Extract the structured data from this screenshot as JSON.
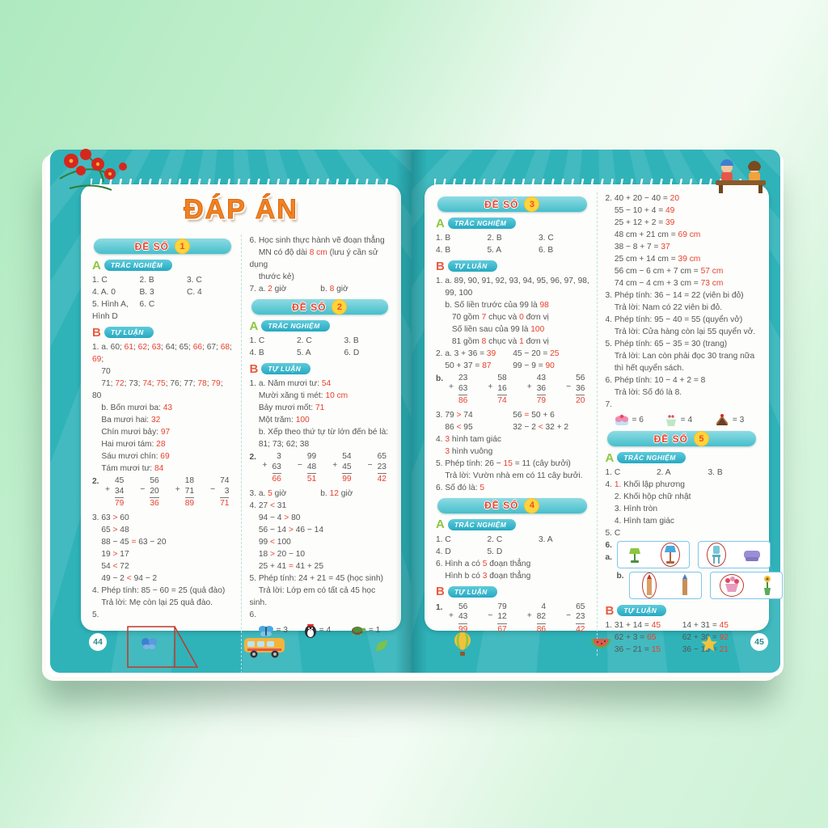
{
  "title": "ĐÁP ÁN",
  "labels": {
    "a": "A",
    "b": "B",
    "tn": "TRẮC NGHIỆM",
    "tl": "TỰ LUẬN",
    "de": "ĐỀ SỐ"
  },
  "footer": {
    "page_left": "44",
    "page_right": "45"
  },
  "de1": {
    "num": "1",
    "tn_rows": [
      [
        "1. C",
        "2. B",
        "3. C"
      ],
      [
        "4. A. 0",
        "B. 3",
        "C. 4"
      ],
      [
        "5. Hình A, Hình D",
        "6. C",
        ""
      ]
    ],
    "tl1": [
      "1. a. 60; [61]; [62]; [63]; 64; 65; [66]; 67; [68]; [69];",
      "    70",
      "    71; [72]; 73; [74]; [75]; 76; 77; [78]; [79]; 80",
      "    b. Bốn mươi ba: [43]",
      "    Ba mươi hai: [32]",
      "    Chín mươi bảy: [97]",
      "    Hai mươi tám: [28]",
      "    Sáu mươi chín: [69]",
      "    Tám mươi tư: [84]"
    ],
    "s2_label": "2.",
    "s2": [
      {
        "op": "+",
        "a": "45",
        "b": "34",
        "r": "79"
      },
      {
        "op": "−",
        "a": "56",
        "b": "20",
        "r": "36"
      },
      {
        "op": "+",
        "a": "18",
        "b": "71",
        "r": "89"
      },
      {
        "op": "−",
        "a": "74",
        "b": "3",
        "r": "71"
      }
    ],
    "s3": [
      "3. 63 [>] 60",
      "    65 [>] 48",
      "    88 − 45 [=] 63 − 20",
      "    19 [>] 17",
      "    54 [<] 72",
      "    49 − 2 [<] 94 − 2",
      "4. Phép tính: 85 − 60 = 25 (quả đào)",
      "    Trả lời: Mẹ còn lại 25 quả đào.",
      "5."
    ],
    "s6": [
      "6. Học sinh thực hành vẽ đoạn thẳng",
      "    MN có độ dài [8 cm] (lưu ý cần sử dụng",
      "    thước kẻ)",
      [
        "7. a. [2] giờ",
        "b. [8] giờ"
      ]
    ]
  },
  "de2": {
    "num": "2",
    "tn_rows": [
      [
        "1. C",
        "2. C",
        "3. B"
      ],
      [
        "4. B",
        "5. A",
        "6. D"
      ]
    ],
    "tl1": [
      "1. a. Năm mươi tư: [54]",
      "    Mười xăng ti mét: [10 cm]",
      "    Bảy mươi mốt: [71]",
      "    Một trăm: [100]",
      "    b. Xếp theo thứ tự từ lớn đến bé là:",
      "    81; 73; 62; 38"
    ],
    "s2_label": "2.",
    "s2": [
      {
        "op": "+",
        "a": "3",
        "b": "63",
        "r": "66"
      },
      {
        "op": "−",
        "a": "99",
        "b": "48",
        "r": "51"
      },
      {
        "op": "+",
        "a": "54",
        "b": "45",
        "r": "99"
      },
      {
        "op": "−",
        "a": "65",
        "b": "23",
        "r": "42"
      }
    ],
    "s3": [
      [
        "3. a. [5] giờ",
        "b. [12] giờ"
      ],
      "4. 27 [<] 31",
      "    94 − 4 [>] 80",
      "    56 − 14 [>] 46 − 14",
      "    99 [<] 100",
      "    18 [>] 20 − 10",
      "    25 + 41 [=] 41 + 25",
      "5. Phép tính: 24 + 21 = 45 (học sinh)",
      "    Trả lời: Lớp em có tất cả 45 học sinh.",
      "6."
    ],
    "s6": {
      "butterfly": "= 3",
      "penguin": "= 4",
      "turtle": "= 1"
    }
  },
  "de3": {
    "num": "3",
    "tn_rows": [
      [
        "1. B",
        "2. B",
        "3. C"
      ],
      [
        "4. B",
        "5. A",
        "6. B"
      ]
    ],
    "tl1": [
      "1. a. 89, 90, 91, 92, 93, 94, 95, 96, 97, 98,",
      "    99, 100",
      "    b. Số liền trước của 99 là [98]",
      "       70 gồm [7] chục và [0] đơn vị",
      "       Số liền sau của 99 là [100]",
      "       81 gồm [8] chục và [1] đơn vị",
      [
        "2. a. 3 + 36 = [39]",
        "45 − 20 = [25]"
      ],
      [
        "    50 + 37 = [87]",
        "99 − 9 = [90]"
      ]
    ],
    "s2_label": "b.",
    "s2": [
      {
        "op": "+",
        "a": "23",
        "b": "63",
        "r": "86"
      },
      {
        "op": "+",
        "a": "58",
        "b": "16",
        "r": "74"
      },
      {
        "op": "+",
        "a": "43",
        "b": "36",
        "r": "79"
      },
      {
        "op": "−",
        "a": "56",
        "b": "36",
        "r": "20"
      }
    ],
    "s3": [
      [
        "3. 79 [>] 74",
        "56 [=] 50 + 6"
      ],
      [
        "    86 [<] 95",
        "32 − 2 [<] 32 + 2"
      ],
      "4. [3] hình tam giác",
      "    [3] hình vuông",
      "5. Phép tính: 26 − [15] = 11 (cây bưởi)",
      "    Trả lời: Vườn nhà em có 11 cây bưởi.",
      "6. Số đó là: [5]"
    ]
  },
  "de4": {
    "num": "4",
    "tn_rows": [
      [
        "1. C",
        "2. C",
        "3. A"
      ],
      [
        "4. D",
        "5. D",
        ""
      ]
    ],
    "tn_extra": [
      "6. Hình a có [5] đoạn thẳng",
      "    Hình b có [3] đoạn thẳng"
    ],
    "s1_label": "1.",
    "s1": [
      {
        "op": "+",
        "a": "56",
        "b": "43",
        "r": "99"
      },
      {
        "op": "−",
        "a": "79",
        "b": "12",
        "r": "67"
      },
      {
        "op": "+",
        "a": "4",
        "b": "82",
        "r": "86"
      },
      {
        "op": "−",
        "a": "65",
        "b": "23",
        "r": "42"
      }
    ],
    "s2": [
      "2. 40 + 20 − 40 = [20]",
      "    55 − 10 + 4 = [49]",
      "    25 + 12 + 2 = [39]",
      "    48 cm + 21 cm = [69 cm]",
      "    38 − 8 + 7 = [37]",
      "    25 cm + 14 cm = [39 cm]",
      "    56 cm − 6 cm + 7 cm = [57 cm]",
      "    74 cm − 4 cm + 3 cm = [73 cm]",
      "3. Phép tính: 36 − 14 = 22 (viên bi đỏ)",
      "    Trả lời: Nam có 22 viên bi đỏ.",
      "4. Phép tính: 95 − 40 = 55 (quyển vở)",
      "    Trả lời: Cửa hàng còn lại 55 quyển vở.",
      "5. Phép tính: 65 − 35 = 30 (trang)",
      "    Trả lời: Lan còn phải đọc 30 trang nữa",
      "    thì hết quyển sách.",
      "6. Phép tính: 10 − 4 + 2 = 8",
      "    Trả lời: Số đó là 8.",
      "7."
    ],
    "s7": {
      "pink_cake": "= 6",
      "cupcake": "= 4",
      "choco_cake": "= 3"
    }
  },
  "de5": {
    "num": "5",
    "tn_rows": [
      [
        "1. C",
        "2. A",
        "3. B"
      ]
    ],
    "tn_lines": [
      "4. [1.] Khối lập phương",
      "    2. Khối hộp chữ nhật",
      "    3. Hình tròn",
      "    4. Hình tam giác",
      "5. C"
    ],
    "s6a_label": "6. a.",
    "s6b_label": "b.",
    "tl": [
      [
        "1. 31 + 14 = [45]",
        "14 + 31 = [45]"
      ],
      [
        "    62 + 3 = [65]",
        "62 + 30 = [92]"
      ],
      [
        "    36 − 21 = [15]",
        "36 − 15 = [21]"
      ]
    ]
  }
}
